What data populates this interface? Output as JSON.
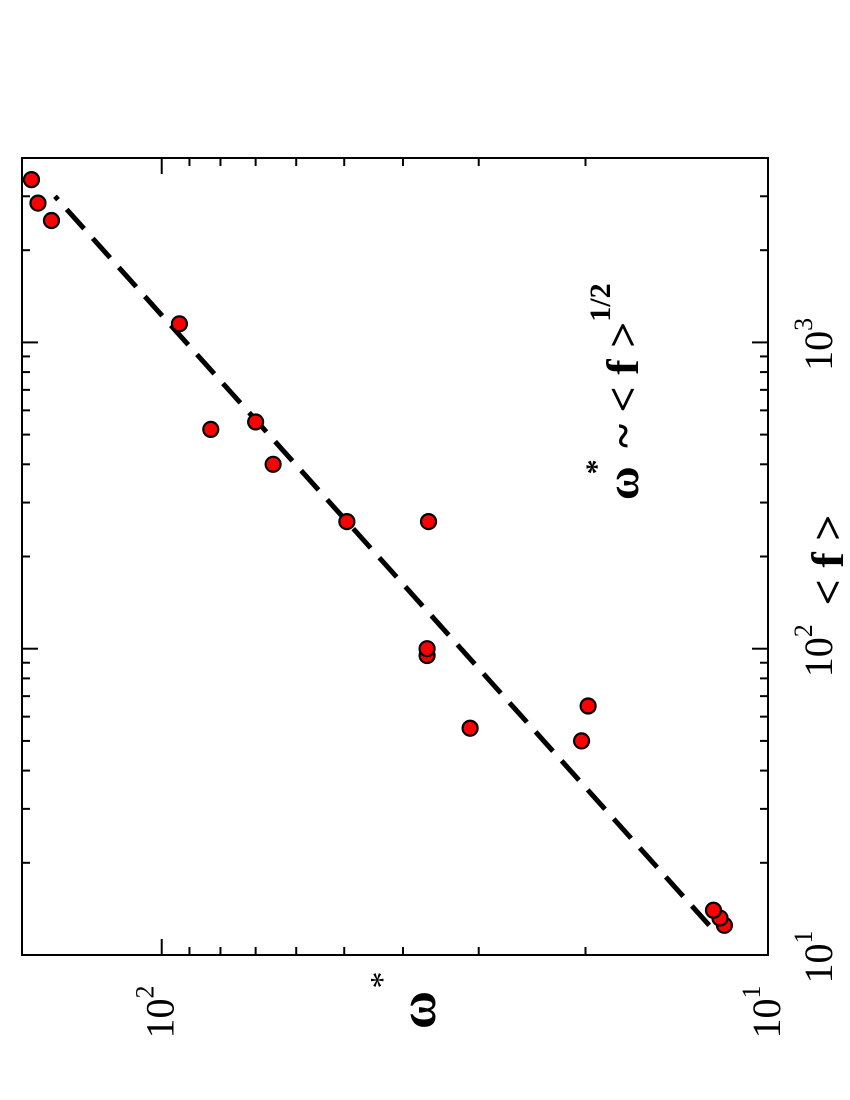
{
  "chart_data": {
    "type": "scatter",
    "xlabel": "< f >",
    "ylabel": "ω*",
    "xscale": "log",
    "yscale": "log",
    "xlim": [
      10,
      4000
    ],
    "ylim": [
      10,
      170
    ],
    "x_ticks": [
      {
        "base": "10",
        "exp": "1",
        "value": 10
      },
      {
        "base": "10",
        "exp": "2",
        "value": 100
      },
      {
        "base": "10",
        "exp": "3",
        "value": 1000
      }
    ],
    "y_ticks": [
      {
        "base": "10",
        "exp": "1",
        "value": 10
      },
      {
        "base": "10",
        "exp": "2",
        "value": 100
      }
    ],
    "annotation": {
      "text": "ω",
      "star": "*",
      "rest": " ~ < f >",
      "exp": "1/2"
    },
    "fit_line": {
      "style": "dashed",
      "x": [
        12.5,
        3000
      ],
      "y": [
        12.5,
        150
      ]
    },
    "series": [
      {
        "marker": "circle",
        "color": "#ff0000",
        "points": [
          {
            "x": 12.5,
            "y": 11.8
          },
          {
            "x": 13.2,
            "y": 12.0
          },
          {
            "x": 14.0,
            "y": 12.3
          },
          {
            "x": 50,
            "y": 20.3
          },
          {
            "x": 55,
            "y": 31.0
          },
          {
            "x": 65,
            "y": 19.8
          },
          {
            "x": 95,
            "y": 36.5
          },
          {
            "x": 100,
            "y": 36.5
          },
          {
            "x": 260,
            "y": 49.5
          },
          {
            "x": 260,
            "y": 36.3
          },
          {
            "x": 400,
            "y": 65.5
          },
          {
            "x": 550,
            "y": 70.0
          },
          {
            "x": 520,
            "y": 83.0
          },
          {
            "x": 1150,
            "y": 93.5
          },
          {
            "x": 2500,
            "y": 152
          },
          {
            "x": 2850,
            "y": 160
          },
          {
            "x": 3400,
            "y": 164
          }
        ]
      }
    ]
  }
}
